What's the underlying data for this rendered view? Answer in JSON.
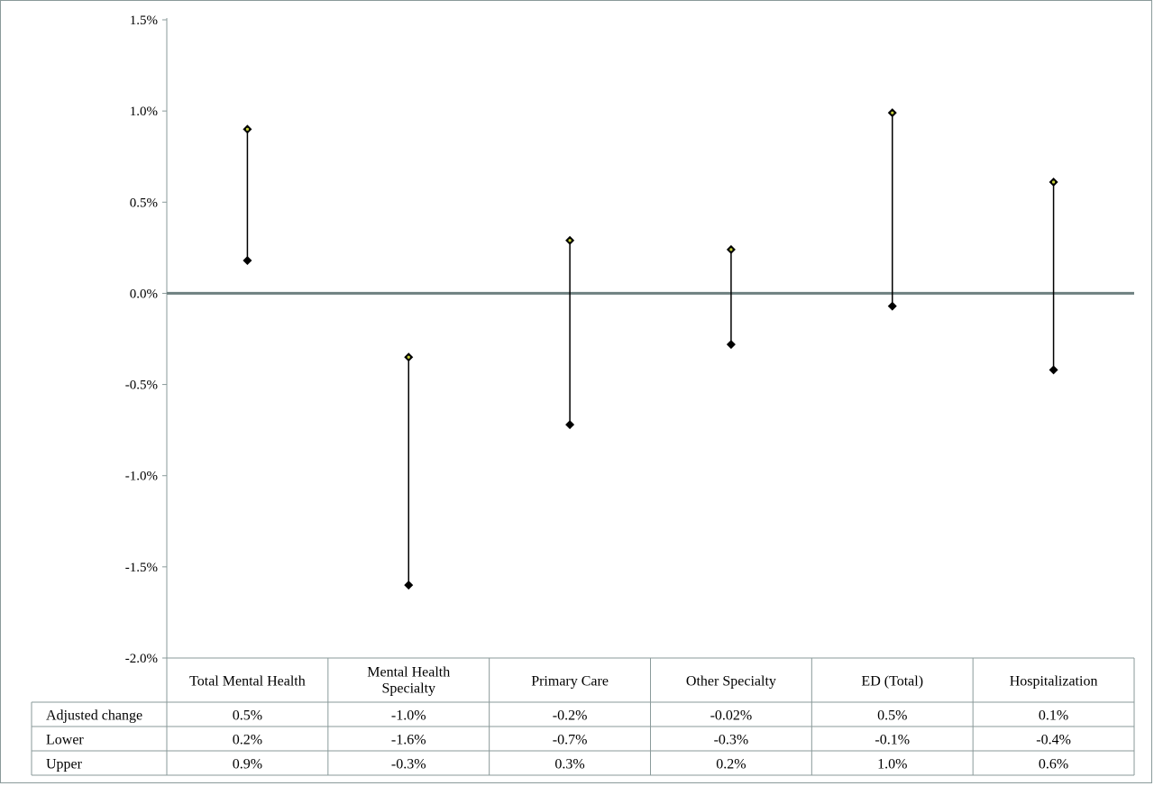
{
  "chart_data": {
    "type": "scatter",
    "categories": [
      "Total Mental Health",
      "Mental Health Specialty",
      "Primary Care",
      "Other Specialty",
      "ED (Total)",
      "Hospitalization"
    ],
    "y_ticks": [
      "1.5%",
      "1.0%",
      "0.5%",
      "0.0%",
      "-0.5%",
      "-1.0%",
      "-1.5%",
      "-2.0%"
    ],
    "ylim": [
      -2.0,
      1.5
    ],
    "series": [
      {
        "name": "Adjusted change",
        "labels": [
          "0.5%",
          "-1.0%",
          "-0.2%",
          "-0.02%",
          "0.5%",
          "0.1%"
        ],
        "values": [
          0.5,
          -1.0,
          -0.2,
          -0.02,
          0.5,
          0.1
        ]
      },
      {
        "name": "Lower",
        "labels": [
          "0.2%",
          "-1.6%",
          "-0.7%",
          "-0.3%",
          "-0.1%",
          "-0.4%"
        ],
        "values": [
          0.18,
          -1.6,
          -0.72,
          -0.28,
          -0.07,
          -0.42
        ]
      },
      {
        "name": "Upper",
        "labels": [
          "0.9%",
          "-0.3%",
          "0.3%",
          "0.2%",
          "1.0%",
          "0.6%"
        ],
        "values": [
          0.9,
          -0.35,
          0.29,
          0.24,
          0.99,
          0.61
        ]
      }
    ],
    "zero_line": true,
    "grid": false,
    "colors": {
      "marker": "#000000",
      "zero_line": "#6e8080",
      "table_border": "#8a9a9a",
      "upper_marker_center": "#c8d23a"
    }
  }
}
